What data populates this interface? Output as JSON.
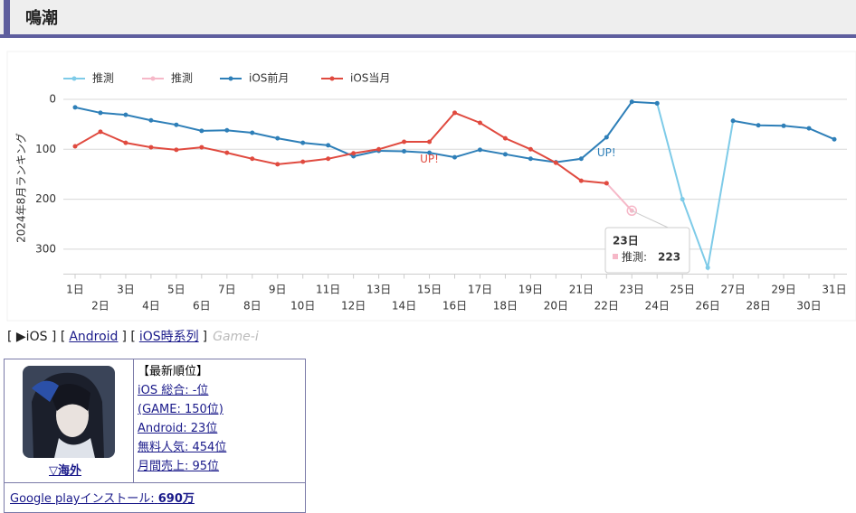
{
  "header": {
    "title": "鳴潮"
  },
  "chart_data": {
    "type": "line",
    "y_label": "2024年8月ランキング",
    "y_inverted": true,
    "categories": [
      "1日",
      "2日",
      "3日",
      "4日",
      "5日",
      "6日",
      "7日",
      "8日",
      "9日",
      "10日",
      "11日",
      "12日",
      "13日",
      "14日",
      "15日",
      "16日",
      "17日",
      "18日",
      "19日",
      "20日",
      "21日",
      "22日",
      "23日",
      "24日",
      "25日",
      "26日",
      "27日",
      "28日",
      "29日",
      "30日",
      "31日"
    ],
    "series": [
      {
        "name": "推測",
        "color": "#7ecbe8",
        "values": [
          null,
          null,
          null,
          null,
          null,
          null,
          null,
          null,
          null,
          null,
          null,
          null,
          null,
          null,
          null,
          null,
          null,
          null,
          null,
          null,
          null,
          null,
          null,
          8,
          200,
          337,
          43,
          null,
          null,
          null,
          null
        ]
      },
      {
        "name": "推測",
        "color": "#f6b8c8",
        "values": [
          null,
          null,
          null,
          null,
          null,
          null,
          null,
          null,
          null,
          null,
          null,
          null,
          null,
          null,
          null,
          null,
          null,
          null,
          null,
          null,
          null,
          168,
          223,
          null,
          null,
          null,
          null,
          null,
          null,
          null,
          null
        ]
      },
      {
        "name": "iOS前月",
        "color": "#2e7fb8",
        "values": [
          16,
          27,
          31,
          42,
          51,
          63,
          62,
          67,
          78,
          87,
          92,
          114,
          103,
          104,
          107,
          116,
          101,
          110,
          119,
          126,
          119,
          76,
          5,
          8,
          null,
          null,
          43,
          52,
          53,
          58,
          80
        ]
      },
      {
        "name": "iOS当月",
        "color": "#e04a3f",
        "values": [
          94,
          65,
          87,
          96,
          101,
          96,
          107,
          119,
          130,
          125,
          119,
          108,
          100,
          85,
          85,
          27,
          47,
          78,
          100,
          127,
          163,
          168,
          null,
          null,
          null,
          null,
          null,
          null,
          null,
          null,
          null
        ]
      }
    ],
    "ylim": [
      0,
      350
    ],
    "yticks": [
      0,
      100,
      200,
      300
    ],
    "grid": true,
    "annotations": [
      {
        "text": "UP!",
        "x": 14,
        "y": 120,
        "color": "#e04a3f"
      },
      {
        "text": "UP!",
        "x": 21,
        "y": 108,
        "color": "#2e7fb8"
      }
    ],
    "tooltip": {
      "title": "23日",
      "label": "推測:"
    }
  },
  "nav": [
    "[ ▶iOS ] [",
    "Android",
    "] [",
    "iOS時系列",
    "]",
    "Game-i"
  ],
  "info": {
    "region": "▽海外",
    "heading": "【最新順位】",
    "lines": [
      "iOS 総合: -位",
      "(GAME: 150位)",
      "Android: 23位",
      "無料人気: 454位",
      "月間売上: 95位"
    ],
    "install_label": "Google playインストール:",
    "install_value": "690万"
  }
}
